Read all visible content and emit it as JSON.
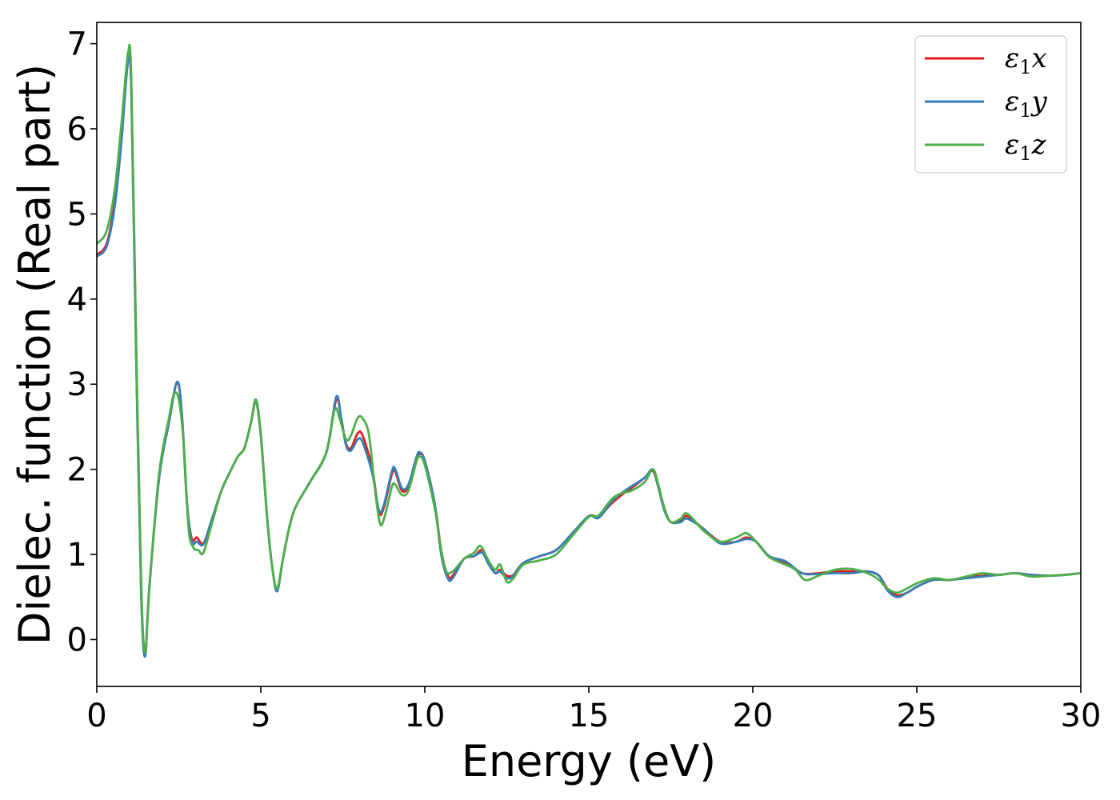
{
  "chart_data": {
    "type": "line",
    "xlabel": "Energy (eV)",
    "ylabel": "Dielec. function (Real part)",
    "xlim": [
      0,
      30
    ],
    "ylim": [
      -0.55,
      7.25
    ],
    "xticks": [
      0,
      5,
      10,
      15,
      20,
      25,
      30
    ],
    "yticks": [
      0,
      1,
      2,
      3,
      4,
      5,
      6,
      7
    ],
    "grid": false,
    "legend_position": "top-right",
    "series": [
      {
        "name": "ε1x",
        "legend_base": "ε",
        "legend_sub": "1",
        "legend_var": "x",
        "color": "#e31a1c",
        "points": [
          [
            0,
            4.52
          ],
          [
            0.3,
            4.65
          ],
          [
            0.55,
            5.15
          ],
          [
            0.75,
            5.9
          ],
          [
            0.95,
            6.8
          ],
          [
            1.05,
            6.5
          ],
          [
            1.2,
            3.4
          ],
          [
            1.35,
            0.6
          ],
          [
            1.47,
            -0.18
          ],
          [
            1.6,
            0.6
          ],
          [
            1.9,
            1.9
          ],
          [
            2.2,
            2.55
          ],
          [
            2.45,
            3.02
          ],
          [
            2.6,
            2.6
          ],
          [
            2.75,
            1.6
          ],
          [
            2.9,
            1.18
          ],
          [
            3.05,
            1.2
          ],
          [
            3.25,
            1.13
          ],
          [
            3.5,
            1.4
          ],
          [
            3.8,
            1.75
          ],
          [
            4.1,
            2.0
          ],
          [
            4.3,
            2.15
          ],
          [
            4.5,
            2.25
          ],
          [
            4.7,
            2.55
          ],
          [
            4.85,
            2.8
          ],
          [
            5.0,
            2.4
          ],
          [
            5.2,
            1.4
          ],
          [
            5.35,
            0.85
          ],
          [
            5.5,
            0.58
          ],
          [
            5.7,
            1.0
          ],
          [
            6.0,
            1.5
          ],
          [
            6.5,
            1.85
          ],
          [
            7.0,
            2.2
          ],
          [
            7.3,
            2.82
          ],
          [
            7.45,
            2.6
          ],
          [
            7.6,
            2.3
          ],
          [
            7.75,
            2.25
          ],
          [
            7.95,
            2.42
          ],
          [
            8.1,
            2.4
          ],
          [
            8.4,
            2.0
          ],
          [
            8.6,
            1.5
          ],
          [
            8.75,
            1.55
          ],
          [
            9.0,
            1.95
          ],
          [
            9.1,
            1.97
          ],
          [
            9.3,
            1.75
          ],
          [
            9.5,
            1.8
          ],
          [
            9.75,
            2.12
          ],
          [
            9.85,
            2.18
          ],
          [
            10.0,
            2.1
          ],
          [
            10.3,
            1.6
          ],
          [
            10.5,
            1.05
          ],
          [
            10.7,
            0.75
          ],
          [
            10.85,
            0.75
          ],
          [
            11.2,
            0.95
          ],
          [
            11.5,
            0.98
          ],
          [
            11.75,
            1.05
          ],
          [
            11.95,
            0.9
          ],
          [
            12.15,
            0.78
          ],
          [
            12.3,
            0.82
          ],
          [
            12.5,
            0.75
          ],
          [
            12.7,
            0.76
          ],
          [
            13.0,
            0.9
          ],
          [
            13.5,
            0.98
          ],
          [
            14.0,
            1.05
          ],
          [
            14.5,
            1.25
          ],
          [
            15.0,
            1.45
          ],
          [
            15.3,
            1.45
          ],
          [
            15.7,
            1.6
          ],
          [
            16.0,
            1.7
          ],
          [
            16.3,
            1.78
          ],
          [
            16.7,
            1.9
          ],
          [
            16.95,
            1.98
          ],
          [
            17.1,
            1.82
          ],
          [
            17.3,
            1.55
          ],
          [
            17.5,
            1.38
          ],
          [
            17.8,
            1.4
          ],
          [
            18.0,
            1.45
          ],
          [
            18.5,
            1.3
          ],
          [
            19.0,
            1.15
          ],
          [
            19.5,
            1.15
          ],
          [
            19.8,
            1.2
          ],
          [
            20.1,
            1.15
          ],
          [
            20.5,
            0.98
          ],
          [
            21.0,
            0.9
          ],
          [
            21.5,
            0.78
          ],
          [
            22.0,
            0.78
          ],
          [
            22.5,
            0.8
          ],
          [
            23.0,
            0.8
          ],
          [
            23.5,
            0.8
          ],
          [
            23.85,
            0.75
          ],
          [
            24.1,
            0.6
          ],
          [
            24.4,
            0.52
          ],
          [
            24.7,
            0.55
          ],
          [
            25.0,
            0.62
          ],
          [
            25.5,
            0.7
          ],
          [
            26.0,
            0.7
          ],
          [
            26.5,
            0.73
          ],
          [
            27.0,
            0.75
          ],
          [
            27.5,
            0.76
          ],
          [
            28.0,
            0.78
          ],
          [
            28.5,
            0.76
          ],
          [
            29.0,
            0.75
          ],
          [
            29.5,
            0.76
          ],
          [
            30.0,
            0.78
          ]
        ]
      },
      {
        "name": "ε1y",
        "legend_base": "ε",
        "legend_sub": "1",
        "legend_var": "y",
        "color": "#377eb8",
        "points": [
          [
            0,
            4.5
          ],
          [
            0.3,
            4.62
          ],
          [
            0.55,
            5.1
          ],
          [
            0.75,
            5.85
          ],
          [
            0.95,
            6.78
          ],
          [
            1.05,
            6.45
          ],
          [
            1.2,
            3.3
          ],
          [
            1.35,
            0.55
          ],
          [
            1.47,
            -0.2
          ],
          [
            1.6,
            0.6
          ],
          [
            1.9,
            1.9
          ],
          [
            2.2,
            2.55
          ],
          [
            2.45,
            3.03
          ],
          [
            2.6,
            2.62
          ],
          [
            2.75,
            1.6
          ],
          [
            2.9,
            1.15
          ],
          [
            3.05,
            1.15
          ],
          [
            3.25,
            1.12
          ],
          [
            3.5,
            1.4
          ],
          [
            3.8,
            1.75
          ],
          [
            4.1,
            2.0
          ],
          [
            4.3,
            2.15
          ],
          [
            4.5,
            2.25
          ],
          [
            4.7,
            2.55
          ],
          [
            4.85,
            2.8
          ],
          [
            5.0,
            2.4
          ],
          [
            5.2,
            1.4
          ],
          [
            5.35,
            0.85
          ],
          [
            5.5,
            0.57
          ],
          [
            5.7,
            1.0
          ],
          [
            6.0,
            1.5
          ],
          [
            6.5,
            1.85
          ],
          [
            7.0,
            2.2
          ],
          [
            7.3,
            2.85
          ],
          [
            7.45,
            2.6
          ],
          [
            7.6,
            2.28
          ],
          [
            7.75,
            2.22
          ],
          [
            7.95,
            2.35
          ],
          [
            8.1,
            2.32
          ],
          [
            8.4,
            1.95
          ],
          [
            8.6,
            1.52
          ],
          [
            8.75,
            1.58
          ],
          [
            9.0,
            1.98
          ],
          [
            9.1,
            2.0
          ],
          [
            9.3,
            1.78
          ],
          [
            9.5,
            1.82
          ],
          [
            9.75,
            2.15
          ],
          [
            9.85,
            2.2
          ],
          [
            10.0,
            2.1
          ],
          [
            10.3,
            1.6
          ],
          [
            10.5,
            1.0
          ],
          [
            10.7,
            0.72
          ],
          [
            10.85,
            0.72
          ],
          [
            11.2,
            0.95
          ],
          [
            11.5,
            0.98
          ],
          [
            11.75,
            1.02
          ],
          [
            11.95,
            0.88
          ],
          [
            12.15,
            0.78
          ],
          [
            12.3,
            0.8
          ],
          [
            12.5,
            0.72
          ],
          [
            12.7,
            0.75
          ],
          [
            13.0,
            0.9
          ],
          [
            13.5,
            0.98
          ],
          [
            14.0,
            1.05
          ],
          [
            14.5,
            1.25
          ],
          [
            15.0,
            1.45
          ],
          [
            15.3,
            1.43
          ],
          [
            15.7,
            1.62
          ],
          [
            16.0,
            1.72
          ],
          [
            16.3,
            1.8
          ],
          [
            16.7,
            1.9
          ],
          [
            16.95,
            2.0
          ],
          [
            17.1,
            1.82
          ],
          [
            17.3,
            1.52
          ],
          [
            17.5,
            1.38
          ],
          [
            17.8,
            1.38
          ],
          [
            18.0,
            1.42
          ],
          [
            18.5,
            1.3
          ],
          [
            19.0,
            1.13
          ],
          [
            19.5,
            1.15
          ],
          [
            19.8,
            1.18
          ],
          [
            20.1,
            1.15
          ],
          [
            20.5,
            0.98
          ],
          [
            21.0,
            0.92
          ],
          [
            21.5,
            0.78
          ],
          [
            22.0,
            0.77
          ],
          [
            22.5,
            0.78
          ],
          [
            23.0,
            0.78
          ],
          [
            23.5,
            0.8
          ],
          [
            23.85,
            0.75
          ],
          [
            24.1,
            0.58
          ],
          [
            24.4,
            0.5
          ],
          [
            24.7,
            0.55
          ],
          [
            25.0,
            0.62
          ],
          [
            25.5,
            0.7
          ],
          [
            26.0,
            0.7
          ],
          [
            26.5,
            0.72
          ],
          [
            27.0,
            0.74
          ],
          [
            27.5,
            0.76
          ],
          [
            28.0,
            0.78
          ],
          [
            28.5,
            0.76
          ],
          [
            29.0,
            0.75
          ],
          [
            29.5,
            0.76
          ],
          [
            30.0,
            0.78
          ]
        ]
      },
      {
        "name": "ε1z",
        "legend_base": "ε",
        "legend_sub": "1",
        "legend_var": "z",
        "color": "#4daf4a",
        "points": [
          [
            0,
            4.65
          ],
          [
            0.3,
            4.8
          ],
          [
            0.55,
            5.3
          ],
          [
            0.75,
            6.05
          ],
          [
            0.95,
            6.88
          ],
          [
            1.05,
            6.6
          ],
          [
            1.2,
            3.5
          ],
          [
            1.35,
            0.7
          ],
          [
            1.47,
            -0.15
          ],
          [
            1.6,
            0.6
          ],
          [
            1.9,
            1.95
          ],
          [
            2.2,
            2.6
          ],
          [
            2.35,
            2.88
          ],
          [
            2.5,
            2.82
          ],
          [
            2.65,
            2.3
          ],
          [
            2.8,
            1.3
          ],
          [
            2.95,
            1.08
          ],
          [
            3.1,
            1.05
          ],
          [
            3.25,
            1.02
          ],
          [
            3.5,
            1.35
          ],
          [
            3.8,
            1.75
          ],
          [
            4.1,
            2.0
          ],
          [
            4.3,
            2.15
          ],
          [
            4.5,
            2.25
          ],
          [
            4.7,
            2.55
          ],
          [
            4.85,
            2.82
          ],
          [
            5.0,
            2.42
          ],
          [
            5.2,
            1.4
          ],
          [
            5.35,
            0.85
          ],
          [
            5.5,
            0.6
          ],
          [
            5.7,
            1.0
          ],
          [
            6.0,
            1.5
          ],
          [
            6.5,
            1.85
          ],
          [
            7.0,
            2.2
          ],
          [
            7.25,
            2.7
          ],
          [
            7.4,
            2.6
          ],
          [
            7.6,
            2.35
          ],
          [
            7.75,
            2.4
          ],
          [
            7.95,
            2.6
          ],
          [
            8.1,
            2.6
          ],
          [
            8.3,
            2.4
          ],
          [
            8.5,
            1.7
          ],
          [
            8.65,
            1.35
          ],
          [
            8.8,
            1.48
          ],
          [
            9.0,
            1.8
          ],
          [
            9.1,
            1.82
          ],
          [
            9.3,
            1.7
          ],
          [
            9.5,
            1.75
          ],
          [
            9.75,
            2.1
          ],
          [
            9.85,
            2.15
          ],
          [
            10.0,
            2.05
          ],
          [
            10.3,
            1.55
          ],
          [
            10.5,
            1.05
          ],
          [
            10.65,
            0.8
          ],
          [
            10.85,
            0.8
          ],
          [
            11.2,
            0.95
          ],
          [
            11.5,
            1.02
          ],
          [
            11.7,
            1.1
          ],
          [
            11.95,
            0.92
          ],
          [
            12.15,
            0.82
          ],
          [
            12.3,
            0.88
          ],
          [
            12.5,
            0.68
          ],
          [
            12.7,
            0.72
          ],
          [
            13.0,
            0.88
          ],
          [
            13.5,
            0.93
          ],
          [
            14.0,
            1.0
          ],
          [
            14.5,
            1.22
          ],
          [
            15.0,
            1.44
          ],
          [
            15.3,
            1.46
          ],
          [
            15.7,
            1.65
          ],
          [
            16.0,
            1.72
          ],
          [
            16.3,
            1.75
          ],
          [
            16.7,
            1.85
          ],
          [
            16.95,
            2.0
          ],
          [
            17.1,
            1.85
          ],
          [
            17.3,
            1.55
          ],
          [
            17.5,
            1.38
          ],
          [
            17.8,
            1.42
          ],
          [
            18.0,
            1.48
          ],
          [
            18.5,
            1.28
          ],
          [
            19.0,
            1.15
          ],
          [
            19.5,
            1.2
          ],
          [
            19.8,
            1.25
          ],
          [
            20.1,
            1.15
          ],
          [
            20.5,
            0.97
          ],
          [
            21.0,
            0.88
          ],
          [
            21.3,
            0.82
          ],
          [
            21.6,
            0.7
          ],
          [
            22.0,
            0.75
          ],
          [
            22.5,
            0.82
          ],
          [
            23.0,
            0.83
          ],
          [
            23.5,
            0.78
          ],
          [
            23.85,
            0.7
          ],
          [
            24.1,
            0.6
          ],
          [
            24.4,
            0.55
          ],
          [
            24.7,
            0.6
          ],
          [
            25.0,
            0.66
          ],
          [
            25.5,
            0.72
          ],
          [
            26.0,
            0.7
          ],
          [
            26.5,
            0.74
          ],
          [
            27.0,
            0.78
          ],
          [
            27.5,
            0.76
          ],
          [
            28.0,
            0.78
          ],
          [
            28.5,
            0.74
          ],
          [
            29.0,
            0.75
          ],
          [
            29.5,
            0.76
          ],
          [
            30.0,
            0.78
          ]
        ]
      }
    ]
  }
}
